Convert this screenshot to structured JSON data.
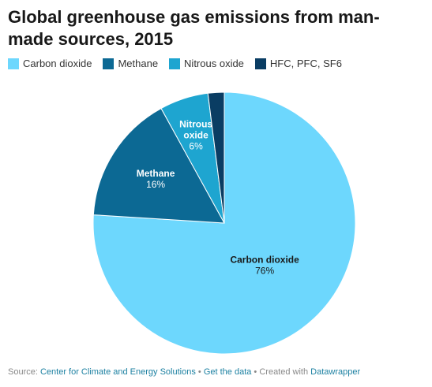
{
  "title": "Global greenhouse gas emissions from man-made sources, 2015",
  "legend": [
    {
      "label": "Carbon dioxide",
      "color": "#6dd7fd"
    },
    {
      "label": "Methane",
      "color": "#0c6994"
    },
    {
      "label": "Nitrous oxide",
      "color": "#1ea5d0"
    },
    {
      "label": "HFC, PFC, SF6",
      "color": "#0a3d63"
    }
  ],
  "chart_data": {
    "type": "pie",
    "title": "Global greenhouse gas emissions from man-made sources, 2015",
    "legend_position": "top-left",
    "slices": [
      {
        "label": "Carbon dioxide",
        "value": 76,
        "color": "#6dd7fd",
        "display_value": "76%",
        "label_lines": [
          "Carbon dioxide"
        ],
        "text_color": "#181818"
      },
      {
        "label": "Methane",
        "value": 16,
        "color": "#0c6994",
        "display_value": "16%",
        "label_lines": [
          "Methane"
        ],
        "text_color": "#ffffff"
      },
      {
        "label": "Nitrous oxide",
        "value": 6,
        "color": "#1ea5d0",
        "display_value": "6%",
        "label_lines": [
          "Nitrous",
          "oxide"
        ],
        "text_color": "#ffffff"
      },
      {
        "label": "HFC, PFC, SF6",
        "value": 2,
        "color": "#0a3d63",
        "display_value": "",
        "label_lines": [],
        "text_color": "#ffffff"
      }
    ]
  },
  "footer": {
    "source_prefix": "Source: ",
    "source_link": "Center for Climate and Energy Solutions",
    "separator": " • ",
    "get_data": "Get the data",
    "created_with": "Created with ",
    "tool": "Datawrapper"
  }
}
